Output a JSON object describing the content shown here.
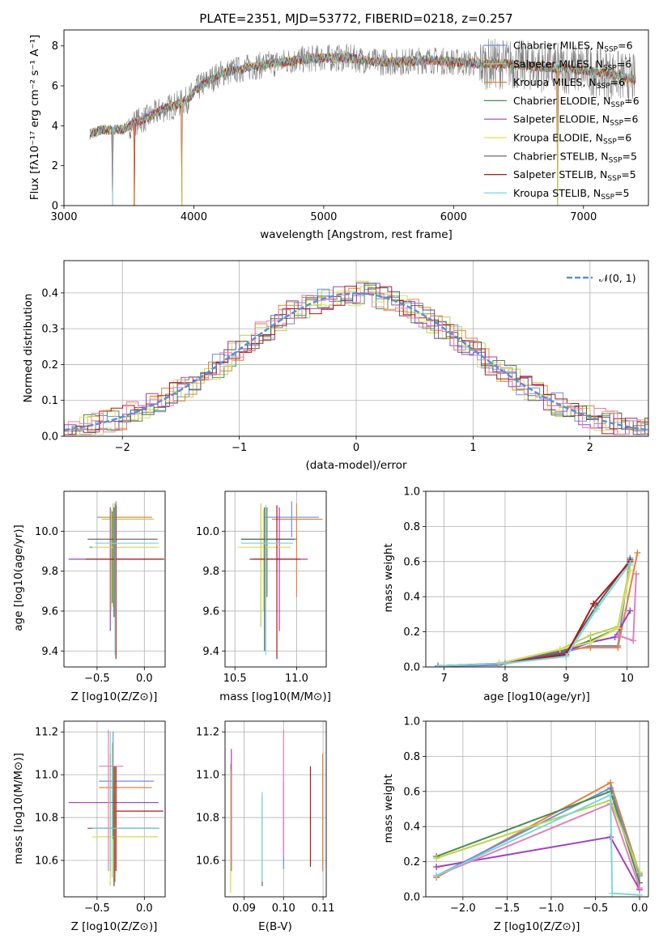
{
  "colors": {
    "miles_chabrier": "#6a8fdc",
    "miles_salpeter": "#b8d44a",
    "miles_kroupa": "#e6813a",
    "elodie_chabrier": "#4f8a4f",
    "elodie_salpeter": "#a23fbf",
    "elodie_kroupa": "#dede60",
    "stelib_chabrier": "#5a5a5a",
    "stelib_salpeter": "#b01818",
    "stelib_kroupa": "#7ed6dc",
    "gauss": "#5b8fd6",
    "grid": "#b0b0b0",
    "data": "#808080"
  },
  "chart_data": [
    {
      "id": "spectrum",
      "type": "line",
      "title": "PLATE=2351, MJD=53772, FIBERID=0218, z=0.257",
      "xlabel": "wavelength [Angstrom, rest frame]",
      "ylabel": "Flux [fλ10⁻¹⁷ erg cm⁻² s⁻¹ A⁻¹]",
      "xlim": [
        3000,
        7500
      ],
      "ylim": [
        0,
        8.8
      ],
      "xticks": [
        3000,
        4000,
        5000,
        6000,
        7000
      ],
      "yticks": [
        0,
        2,
        4,
        6,
        8
      ],
      "grid": false,
      "legend_position": "top-right",
      "data_range": [
        3200,
        7400
      ],
      "continuum": [
        [
          3200,
          3.6
        ],
        [
          3300,
          3.8
        ],
        [
          3450,
          3.8
        ],
        [
          3550,
          4.2
        ],
        [
          3650,
          4.4
        ],
        [
          3750,
          4.8
        ],
        [
          3850,
          5.0
        ],
        [
          3950,
          5.3
        ],
        [
          4050,
          6.0
        ],
        [
          4200,
          6.6
        ],
        [
          4400,
          6.9
        ],
        [
          4600,
          7.1
        ],
        [
          4800,
          7.3
        ],
        [
          5000,
          7.4
        ],
        [
          5200,
          7.4
        ],
        [
          5400,
          7.2
        ],
        [
          5600,
          7.2
        ],
        [
          5800,
          7.3
        ],
        [
          6000,
          7.2
        ],
        [
          6200,
          7.1
        ],
        [
          6400,
          7.1
        ],
        [
          6600,
          7.0
        ],
        [
          6800,
          6.9
        ],
        [
          7000,
          6.8
        ],
        [
          7200,
          6.6
        ],
        [
          7400,
          6.3
        ]
      ],
      "model_drops": [
        3375,
        3540,
        3910,
        6800
      ],
      "series": [
        {
          "name": "Chabrier MILES, N",
          "sub": "SSP",
          "tail": "=6",
          "color_key": "miles_chabrier"
        },
        {
          "name": "Salpeter MILES, N",
          "sub": "SSP",
          "tail": "=6",
          "color_key": "miles_salpeter"
        },
        {
          "name": "Kroupa MILES, N",
          "sub": "SSP",
          "tail": "=6",
          "color_key": "miles_kroupa"
        },
        {
          "name": "Chabrier ELODIE, N",
          "sub": "SSP",
          "tail": "=6",
          "color_key": "elodie_chabrier"
        },
        {
          "name": "Salpeter ELODIE, N",
          "sub": "SSP",
          "tail": "=6",
          "color_key": "elodie_salpeter"
        },
        {
          "name": "Kroupa ELODIE, N",
          "sub": "SSP",
          "tail": "=6",
          "color_key": "elodie_kroupa"
        },
        {
          "name": "Chabrier STELIB, N",
          "sub": "SSP",
          "tail": "=5",
          "color_key": "stelib_chabrier"
        },
        {
          "name": "Salpeter STELIB, N",
          "sub": "SSP",
          "tail": "=5",
          "color_key": "stelib_salpeter"
        },
        {
          "name": "Kroupa STELIB, N",
          "sub": "SSP",
          "tail": "=5",
          "color_key": "stelib_kroupa"
        }
      ]
    },
    {
      "id": "residuals",
      "type": "histogram",
      "xlabel": "(data-model)/error",
      "ylabel": "Normed distribution",
      "xlim": [
        -2.5,
        2.5
      ],
      "ylim": [
        0,
        0.49
      ],
      "xticks": [
        -2,
        -1,
        0,
        1,
        2
      ],
      "yticks": [
        0.0,
        0.1,
        0.2,
        0.3,
        0.4
      ],
      "grid": true,
      "legend_position": "top-right",
      "legend_label": "𝒩(0, 1)",
      "bin_width": 0.1
    },
    {
      "id": "age_vs_Z",
      "type": "errorbar",
      "xlabel": "Z [log10(Z/Z⊙)]",
      "ylabel": "age [log10(age/yr)]",
      "xlim": [
        -0.85,
        0.22
      ],
      "ylim": [
        9.32,
        10.2
      ],
      "xticks": [
        -0.5,
        0.0
      ],
      "yticks": [
        9.4,
        9.6,
        9.8,
        10.0
      ],
      "grid": true,
      "points": [
        {
          "x": -0.3,
          "y": 10.07,
          "xlo": -0.5,
          "xhi": 0.08,
          "ylo": 9.95,
          "yhi": 10.15,
          "color_key": "miles_chabrier"
        },
        {
          "x": -0.33,
          "y": 10.06,
          "xlo": -0.45,
          "xhi": 0.1,
          "ylo": 9.62,
          "yhi": 10.14,
          "color_key": "miles_salpeter"
        },
        {
          "x": -0.31,
          "y": 10.07,
          "xlo": -0.47,
          "xhi": 0.08,
          "ylo": 9.67,
          "yhi": 10.14,
          "color_key": "miles_kroupa"
        },
        {
          "x": -0.34,
          "y": 9.92,
          "xlo": -0.58,
          "xhi": 0.12,
          "ylo": 9.64,
          "yhi": 10.1,
          "color_key": "elodie_chabrier"
        },
        {
          "x": -0.36,
          "y": 9.86,
          "xlo": -0.8,
          "xhi": 0.18,
          "ylo": 9.5,
          "yhi": 10.12,
          "color_key": "elodie_salpeter"
        },
        {
          "x": -0.35,
          "y": 9.92,
          "xlo": -0.55,
          "xhi": 0.16,
          "ylo": 9.6,
          "yhi": 10.11,
          "color_key": "elodie_kroupa"
        },
        {
          "x": -0.32,
          "y": 9.96,
          "xlo": -0.6,
          "xhi": 0.14,
          "ylo": 9.57,
          "yhi": 10.12,
          "color_key": "stelib_chabrier"
        },
        {
          "x": -0.3,
          "y": 9.86,
          "xlo": -0.62,
          "xhi": 0.21,
          "ylo": 9.36,
          "yhi": 10.13,
          "color_key": "stelib_salpeter"
        },
        {
          "x": -0.31,
          "y": 9.94,
          "xlo": -0.52,
          "xhi": 0.15,
          "ylo": 9.38,
          "yhi": 10.13,
          "color_key": "stelib_kroupa"
        }
      ]
    },
    {
      "id": "age_vs_mass",
      "type": "errorbar",
      "xlabel": "mass [log10(M/M⊙)]",
      "ylabel": "",
      "xlim": [
        10.42,
        11.24
      ],
      "ylim": [
        9.32,
        10.2
      ],
      "xticks": [
        10.5,
        11.0
      ],
      "yticks": [
        9.4,
        9.6,
        9.8,
        10.0
      ],
      "grid": true,
      "points": [
        {
          "x": 10.96,
          "y": 10.07,
          "xlo": 10.73,
          "xhi": 11.18,
          "ylo": 9.97,
          "yhi": 10.15,
          "color_key": "miles_chabrier"
        },
        {
          "x": 10.71,
          "y": 9.92,
          "xlo": 10.55,
          "xhi": 10.95,
          "ylo": 9.52,
          "yhi": 10.14,
          "color_key": "miles_salpeter"
        },
        {
          "x": 11.0,
          "y": 10.06,
          "xlo": 10.8,
          "xhi": 11.21,
          "ylo": 9.67,
          "yhi": 10.14,
          "color_key": "miles_kroupa"
        },
        {
          "x": 10.76,
          "y": 9.96,
          "xlo": 10.55,
          "xhi": 11.0,
          "ylo": 9.67,
          "yhi": 10.12,
          "color_key": "elodie_chabrier"
        },
        {
          "x": 10.86,
          "y": 9.86,
          "xlo": 10.65,
          "xhi": 11.09,
          "ylo": 9.5,
          "yhi": 10.12,
          "color_key": "elodie_salpeter"
        },
        {
          "x": 10.73,
          "y": 9.92,
          "xlo": 10.52,
          "xhi": 10.93,
          "ylo": 9.6,
          "yhi": 10.11,
          "color_key": "elodie_kroupa"
        },
        {
          "x": 10.74,
          "y": 9.96,
          "xlo": 10.55,
          "xhi": 10.98,
          "ylo": 9.4,
          "yhi": 10.12,
          "color_key": "stelib_chabrier"
        },
        {
          "x": 10.84,
          "y": 9.86,
          "xlo": 10.62,
          "xhi": 11.03,
          "ylo": 9.36,
          "yhi": 10.13,
          "color_key": "stelib_salpeter"
        },
        {
          "x": 10.75,
          "y": 9.94,
          "xlo": 10.55,
          "xhi": 10.97,
          "ylo": 9.38,
          "yhi": 10.13,
          "color_key": "stelib_kroupa"
        }
      ]
    },
    {
      "id": "mw_vs_age",
      "type": "line",
      "xlabel": "age [log10(age/yr)]",
      "ylabel": "mass weight",
      "xlim": [
        6.7,
        10.35
      ],
      "ylim": [
        0,
        1.0
      ],
      "xticks": [
        7,
        8,
        9,
        10
      ],
      "yticks": [
        0.0,
        0.2,
        0.4,
        0.6,
        0.8,
        1.0
      ],
      "grid": true,
      "series": [
        {
          "color_key": "miles_chabrier",
          "x": [
            6.9,
            7.9,
            8.9,
            9.4,
            9.85,
            10.05
          ],
          "y": [
            0.005,
            0.01,
            0.08,
            0.12,
            0.12,
            0.62
          ]
        },
        {
          "color_key": "miles_salpeter",
          "x": [
            6.9,
            7.9,
            8.9,
            9.4,
            9.85,
            10.05
          ],
          "y": [
            0.005,
            0.02,
            0.1,
            0.18,
            0.23,
            0.58
          ]
        },
        {
          "color_key": "miles_kroupa",
          "x": [
            6.9,
            7.9,
            8.9,
            9.4,
            9.85,
            10.17
          ],
          "y": [
            0.005,
            0.02,
            0.1,
            0.11,
            0.11,
            0.65
          ]
        },
        {
          "color_key": "elodie_chabrier",
          "x": [
            6.9,
            7.9,
            8.9,
            9.4,
            9.85,
            10.05
          ],
          "y": [
            0.005,
            0.02,
            0.09,
            0.15,
            0.22,
            0.55
          ]
        },
        {
          "color_key": "elodie_salpeter",
          "x": [
            6.9,
            7.9,
            8.9,
            9.4,
            9.8,
            10.05
          ],
          "y": [
            0.005,
            0.015,
            0.08,
            0.14,
            0.17,
            0.32
          ]
        },
        {
          "color_key": "elodie_kroupa",
          "x": [
            6.9,
            7.9,
            8.9,
            9.4,
            9.85,
            10.05
          ],
          "y": [
            0.005,
            0.02,
            0.1,
            0.14,
            0.22,
            0.55
          ]
        },
        {
          "color_key": "stelib_chabrier",
          "x": [
            6.9,
            8.0,
            9.0,
            9.5,
            10.05
          ],
          "y": [
            0.005,
            0.02,
            0.08,
            0.35,
            0.61
          ]
        },
        {
          "color_key": "stelib_salpeter",
          "x": [
            6.9,
            8.0,
            9.0,
            9.45,
            10.05
          ],
          "y": [
            0.005,
            0.02,
            0.07,
            0.36,
            0.6
          ]
        },
        {
          "color_key": "stelib_kroupa",
          "x": [
            6.9,
            8.0,
            9.0,
            9.5,
            10.05
          ],
          "y": [
            0.005,
            0.02,
            0.06,
            0.33,
            0.59
          ]
        },
        {
          "color_key": "pink",
          "x": [
            9.85,
            10.1,
            10.15
          ],
          "y": [
            0.18,
            0.15,
            0.53
          ]
        }
      ]
    },
    {
      "id": "mass_vs_Z",
      "type": "errorbar",
      "xlabel": "Z [log10(Z/Z⊙)]",
      "ylabel": "mass [log10(M/M⊙)]",
      "xlim": [
        -0.85,
        0.22
      ],
      "ylim": [
        10.43,
        11.25
      ],
      "xticks": [
        -0.5,
        0.0
      ],
      "yticks": [
        10.6,
        10.8,
        11.0,
        11.2
      ],
      "grid": true,
      "points": [
        {
          "x": -0.33,
          "y": 10.97,
          "xlo": -0.48,
          "xhi": 0.1,
          "ylo": 10.7,
          "yhi": 11.2,
          "color_key": "miles_chabrier"
        },
        {
          "x": -0.34,
          "y": 10.71,
          "xlo": -0.5,
          "xhi": 0.14,
          "ylo": 10.52,
          "yhi": 11.15,
          "color_key": "miles_salpeter"
        },
        {
          "x": -0.31,
          "y": 10.94,
          "xlo": -0.48,
          "xhi": 0.08,
          "ylo": 10.5,
          "yhi": 11.04,
          "color_key": "miles_kroupa"
        },
        {
          "x": -0.32,
          "y": 10.75,
          "xlo": -0.55,
          "xhi": 0.12,
          "ylo": 10.48,
          "yhi": 10.9,
          "color_key": "elodie_chabrier"
        },
        {
          "x": -0.36,
          "y": 10.87,
          "xlo": -0.8,
          "xhi": 0.15,
          "ylo": 10.55,
          "yhi": 11.1,
          "color_key": "elodie_salpeter"
        },
        {
          "x": -0.36,
          "y": 10.71,
          "xlo": -0.55,
          "xhi": 0.14,
          "ylo": 10.48,
          "yhi": 11.0,
          "color_key": "elodie_kroupa"
        },
        {
          "x": -0.32,
          "y": 10.75,
          "xlo": -0.6,
          "xhi": 0.16,
          "ylo": 10.48,
          "yhi": 11.04,
          "color_key": "stelib_chabrier"
        },
        {
          "x": -0.3,
          "y": 10.83,
          "xlo": -0.3,
          "xhi": 0.2,
          "ylo": 10.55,
          "yhi": 11.04,
          "color_key": "stelib_salpeter"
        },
        {
          "x": -0.36,
          "y": 10.75,
          "xlo": -0.55,
          "xhi": 0.16,
          "ylo": 10.55,
          "yhi": 11.2,
          "color_key": "stelib_kroupa"
        },
        {
          "x": -0.38,
          "y": 11.04,
          "xlo": -0.48,
          "xhi": -0.22,
          "ylo": 10.55,
          "yhi": 11.21,
          "color_key": "pink"
        }
      ]
    },
    {
      "id": "mass_vs_ebv",
      "type": "errorbar",
      "xlabel": "E(B-V)",
      "ylabel": "",
      "xlim": [
        0.0852,
        0.1108
      ],
      "ylim": [
        10.43,
        11.25
      ],
      "xticks": [
        0.09,
        0.1,
        0.11
      ],
      "yticks": [
        10.6,
        10.8,
        11.0,
        11.2
      ],
      "grid": true,
      "points": [
        {
          "x": 0.1,
          "ylo": 10.56,
          "yhi": 10.97,
          "color_key": "miles_chabrier"
        },
        {
          "x": 0.0866,
          "ylo": 10.45,
          "yhi": 11.05,
          "color_key": "miles_salpeter"
        },
        {
          "x": 0.1099,
          "ylo": 10.55,
          "yhi": 11.1,
          "color_key": "miles_kroupa"
        },
        {
          "x": 0.0868,
          "ylo": 10.55,
          "yhi": 11.12,
          "color_key": "elodie_salpeter"
        },
        {
          "x": 0.0866,
          "ylo": 10.45,
          "yhi": 11.02,
          "color_key": "elodie_kroupa"
        },
        {
          "x": 0.0946,
          "ylo": 10.48,
          "yhi": 10.9,
          "color_key": "stelib_chabrier"
        },
        {
          "x": 0.1068,
          "ylo": 10.57,
          "yhi": 11.04,
          "color_key": "stelib_salpeter"
        },
        {
          "x": 0.1,
          "ylo": 10.62,
          "yhi": 11.21,
          "color_key": "pink"
        },
        {
          "x": 0.0946,
          "ylo": 10.5,
          "yhi": 10.92,
          "color_key": "stelib_kroupa"
        }
      ]
    },
    {
      "id": "mw_vs_Z",
      "type": "line",
      "xlabel": "Z [log10(Z/Z⊙)]",
      "ylabel": "mass weight",
      "xlim": [
        -2.42,
        0.1
      ],
      "ylim": [
        0,
        1.0
      ],
      "xticks": [
        -2.0,
        -1.5,
        -1.0,
        -0.5,
        0.0
      ],
      "yticks": [
        0.0,
        0.2,
        0.4,
        0.6,
        0.8,
        1.0
      ],
      "grid": true,
      "series": [
        {
          "color_key": "miles_kroupa",
          "x": [
            -2.3,
            -0.33,
            0.0
          ],
          "y": [
            0.11,
            0.65,
            0.13
          ]
        },
        {
          "color_key": "miles_chabrier",
          "x": [
            -2.3,
            -0.33,
            0.0
          ],
          "y": [
            0.12,
            0.62,
            0.12
          ]
        },
        {
          "color_key": "elodie_chabrier",
          "x": [
            -2.3,
            -0.33,
            0.0
          ],
          "y": [
            0.23,
            0.6,
            0.08
          ]
        },
        {
          "color_key": "miles_salpeter",
          "x": [
            -2.3,
            -0.33,
            0.0
          ],
          "y": [
            0.22,
            0.55,
            0.14
          ]
        },
        {
          "color_key": "elodie_salpeter",
          "x": [
            -2.3,
            -0.33,
            0.0
          ],
          "y": [
            0.17,
            0.34,
            0.04
          ]
        },
        {
          "color_key": "pink",
          "x": [
            -2.3,
            -0.33,
            0.0
          ],
          "y": [
            0.12,
            0.53,
            0.05
          ]
        },
        {
          "color_key": "stelib_kroupa",
          "x": [
            -2.3,
            -0.33,
            -0.31,
            0.0
          ],
          "y": [
            0.12,
            0.58,
            0.02,
            0.01
          ]
        }
      ]
    }
  ]
}
